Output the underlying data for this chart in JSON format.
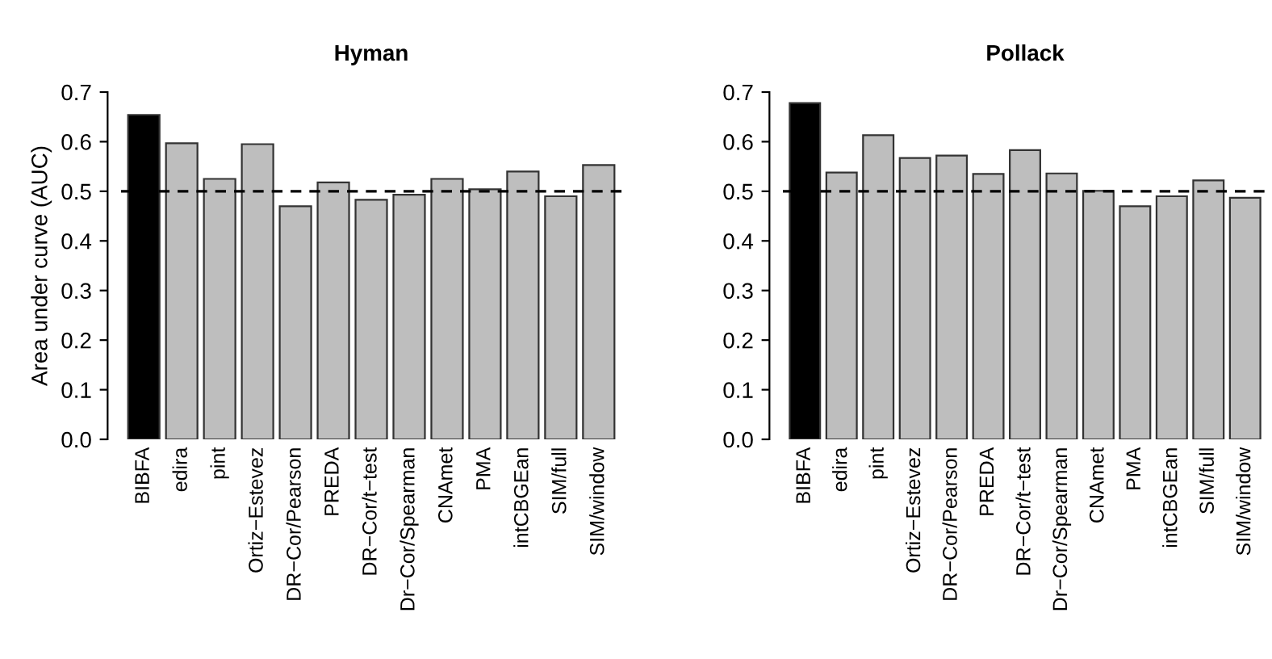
{
  "chart_data": [
    {
      "type": "bar",
      "title": "Hyman",
      "ylabel": "Area under curve (AUC)",
      "categories": [
        "BIBFA",
        "edira",
        "pint",
        "Ortiz−Estevez",
        "DR−Cor/Pearson",
        "PREDA",
        "DR−Cor/t−test",
        "Dr−Cor/Spearman",
        "CNAmet",
        "PMA",
        "intCBGEan",
        "SIM/full",
        "SIM/window"
      ],
      "values": [
        0.654,
        0.597,
        0.525,
        0.595,
        0.47,
        0.518,
        0.483,
        0.493,
        0.525,
        0.504,
        0.54,
        0.49,
        0.553
      ],
      "colors": [
        "#000000",
        "#bebebe",
        "#bebebe",
        "#bebebe",
        "#bebebe",
        "#bebebe",
        "#bebebe",
        "#bebebe",
        "#bebebe",
        "#bebebe",
        "#bebebe",
        "#bebebe",
        "#bebebe"
      ],
      "ylim": [
        0,
        0.7
      ],
      "yticks": [
        {
          "value": 0,
          "label": "0.0"
        },
        0.1,
        0.2,
        0.3,
        0.4,
        0.5,
        0.6,
        0.7
      ],
      "ref_lines": [
        {
          "axis": "y",
          "value": 0.5,
          "label": null,
          "color": "#000000",
          "line_style": "dashed"
        }
      ],
      "grid": false,
      "legend": false
    },
    {
      "type": "bar",
      "title": "Pollack",
      "categories": [
        "BIBFA",
        "edira",
        "pint",
        "Ortiz−Estevez",
        "DR−Cor/Pearson",
        "PREDA",
        "DR−Cor/t−test",
        "Dr−Cor/Spearman",
        "CNAmet",
        "PMA",
        "intCBGEan",
        "SIM/full",
        "SIM/window"
      ],
      "values": [
        0.678,
        0.538,
        0.613,
        0.567,
        0.572,
        0.535,
        0.583,
        0.536,
        0.501,
        0.47,
        0.49,
        0.522,
        0.487
      ],
      "colors": [
        "#000000",
        "#bebebe",
        "#bebebe",
        "#bebebe",
        "#bebebe",
        "#bebebe",
        "#bebebe",
        "#bebebe",
        "#bebebe",
        "#bebebe",
        "#bebebe",
        "#bebebe",
        "#bebebe"
      ],
      "ylim": [
        0,
        0.7
      ],
      "yticks": [
        {
          "value": 0,
          "label": "0.0"
        },
        0.1,
        0.2,
        0.3,
        0.4,
        0.5,
        0.6,
        0.7
      ],
      "ref_lines": [
        {
          "axis": "y",
          "value": 0.5,
          "label": null,
          "color": "#000000",
          "line_style": "dashed"
        }
      ],
      "grid": false,
      "legend": false
    }
  ]
}
